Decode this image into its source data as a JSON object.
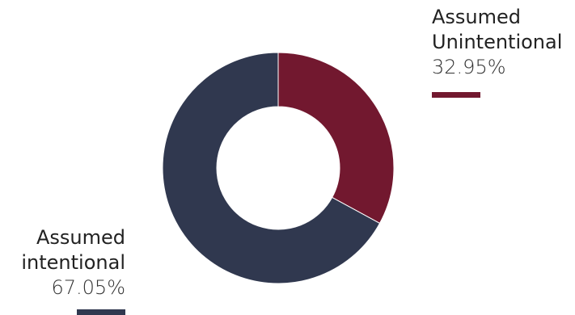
{
  "chart_data": {
    "type": "pie",
    "donut": true,
    "title": "",
    "slices": [
      {
        "name_lines": [
          "Assumed",
          "Unintentional"
        ],
        "value": 32.95,
        "label": "32.95%",
        "color": "#72182f"
      },
      {
        "name_lines": [
          "Assumed",
          "intentional"
        ],
        "value": 67.05,
        "label": "67.05%",
        "color": "#30384f"
      }
    ],
    "start_angle": "12 o'clock",
    "direction": "clockwise",
    "separator_color": "#ffffff",
    "legend": "inline labels with color swatches"
  }
}
